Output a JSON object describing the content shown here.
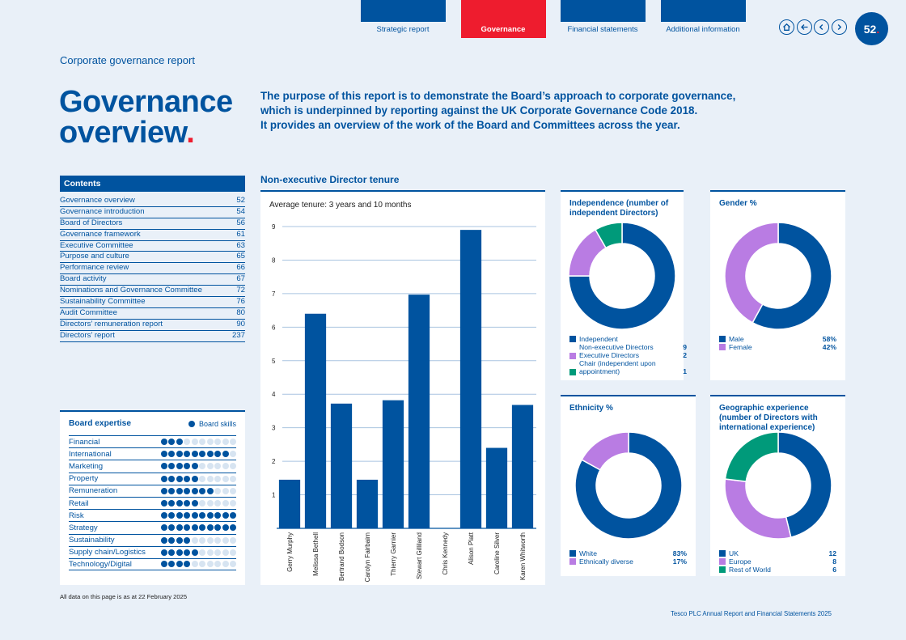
{
  "nav": {
    "tabs": [
      {
        "label": "Strategic report",
        "active": false
      },
      {
        "label": "Governance",
        "active": true
      },
      {
        "label": "Financial statements",
        "active": false
      },
      {
        "label": "Additional information",
        "active": false
      }
    ],
    "icons": [
      "home-icon",
      "back-icon",
      "chevron-left-icon",
      "chevron-right-icon"
    ],
    "page_number": "52",
    "page_dot": "."
  },
  "section_label": "Corporate governance report",
  "title": {
    "line1": "Governance",
    "line2": "overview",
    "dot": "."
  },
  "intro": {
    "line1": "The purpose of this report is to demonstrate the Board’s approach to corporate governance,",
    "line2": "which is underpinned by reporting against the UK Corporate Governance Code 2018.",
    "line3": "It provides an overview of the work of the Board and Committees across the year."
  },
  "contents": {
    "heading": "Contents",
    "items": [
      {
        "label": "Governance overview",
        "page": "52"
      },
      {
        "label": "Governance introduction",
        "page": "54"
      },
      {
        "label": "Board of Directors",
        "page": "56"
      },
      {
        "label": "Governance framework",
        "page": "61"
      },
      {
        "label": "Executive Committee",
        "page": "63"
      },
      {
        "label": "Purpose and culture",
        "page": "65"
      },
      {
        "label": "Performance review",
        "page": "66"
      },
      {
        "label": "Board activity",
        "page": "67"
      },
      {
        "label": "Nominations and Governance Committee",
        "page": "72"
      },
      {
        "label": "Sustainability Committee",
        "page": "76"
      },
      {
        "label": "Audit Committee",
        "page": "80"
      },
      {
        "label": "Directors’ remuneration report",
        "page": "90"
      },
      {
        "label": "Directors’ report",
        "page": "237"
      }
    ]
  },
  "expertise": {
    "title": "Board expertise",
    "legend": "Board skills",
    "max": 10,
    "rows": [
      {
        "label": "Financial",
        "count": 3
      },
      {
        "label": "International",
        "count": 9
      },
      {
        "label": "Marketing",
        "count": 5
      },
      {
        "label": "Property",
        "count": 5
      },
      {
        "label": "Remuneration",
        "count": 7
      },
      {
        "label": "Retail",
        "count": 5
      },
      {
        "label": "Risk",
        "count": 10
      },
      {
        "label": "Strategy",
        "count": 10
      },
      {
        "label": "Sustainability",
        "count": 4
      },
      {
        "label": "Supply chain/Logistics",
        "count": 5
      },
      {
        "label": "Technology/Digital",
        "count": 4
      }
    ]
  },
  "footnote": "All data on this page is as at 22 February 2025",
  "footer": "Tesco PLC Annual Report and Financial Statements 2025",
  "colors": {
    "navy": "#00539f",
    "red": "#ee1c2e",
    "purple": "#b97ce3",
    "green": "#009a7a",
    "grid": "#a9c4e0"
  },
  "chart_data": [
    {
      "type": "bar",
      "title": "Non-executive Director tenure",
      "subtitle": "Average tenure: 3 years and 10 months",
      "categories": [
        "Gerry Murphy",
        "Melissa Bethell",
        "Bertrand Bodson",
        "Carolyn Fairbairn",
        "Thierry Garnier",
        "Stewart Gilliland",
        "Chris Kennedy",
        "Alison Platt",
        "Caroline Silver",
        "Karen Whitworth"
      ],
      "values": [
        1.45,
        6.4,
        3.72,
        1.45,
        3.82,
        6.97,
        0,
        8.9,
        2.4,
        3.68
      ],
      "ylim": [
        0,
        9
      ],
      "yticks": [
        "1",
        "2",
        "3",
        "4",
        "5",
        "6",
        "7",
        "8",
        "9"
      ],
      "grid": true
    },
    {
      "type": "pie",
      "title": "Independence (number of independent Directors)",
      "legend_header": "Independent",
      "slices": [
        {
          "label": "Non-executive Directors",
          "value": 9,
          "display": "9"
        },
        {
          "label": "Executive Directors",
          "value": 2,
          "display": "2"
        },
        {
          "label": "Chair (independent upon appointment)",
          "value": 1,
          "display": "1"
        }
      ]
    },
    {
      "type": "pie",
      "title": "Gender %",
      "slices": [
        {
          "label": "Male",
          "value": 58,
          "display": "58%"
        },
        {
          "label": "Female",
          "value": 42,
          "display": "42%"
        }
      ]
    },
    {
      "type": "pie",
      "title": "Ethnicity %",
      "slices": [
        {
          "label": "White",
          "value": 83,
          "display": "83%"
        },
        {
          "label": "Ethnically diverse",
          "value": 17,
          "display": "17%"
        }
      ]
    },
    {
      "type": "pie",
      "title": "Geographic experience (number of Directors with international experience)",
      "slices": [
        {
          "label": "UK",
          "value": 12,
          "display": "12"
        },
        {
          "label": "Europe",
          "value": 8,
          "display": "8"
        },
        {
          "label": "Rest of World",
          "value": 6,
          "display": "6"
        }
      ]
    }
  ]
}
